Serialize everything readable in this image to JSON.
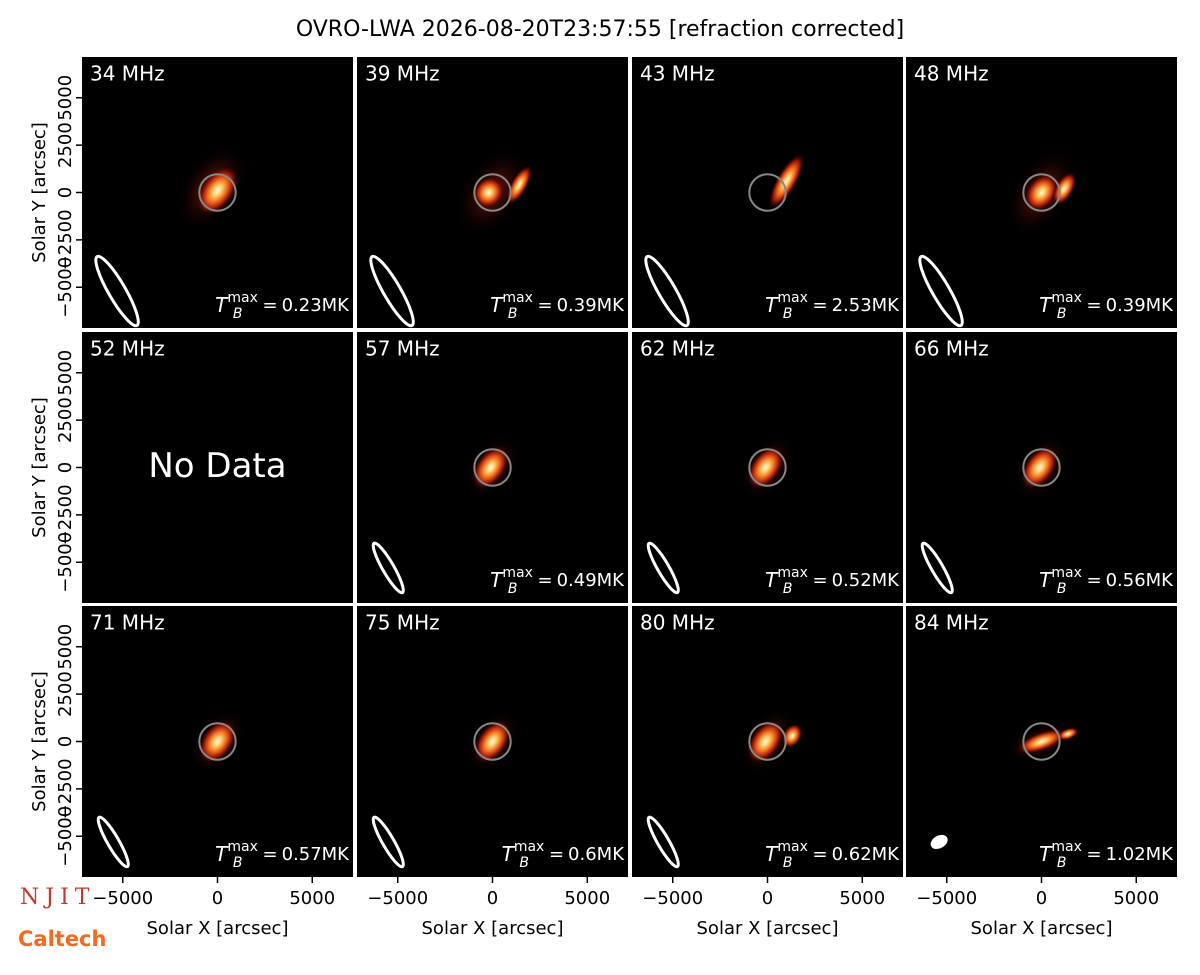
{
  "chart_data": {
    "type": "image-grid",
    "title": "OVRO-LWA 2026-08-20T23:57:55 [refraction corrected]",
    "xlabel": "Solar X [arcsec]",
    "ylabel": "Solar Y [arcsec]",
    "xlim": [
      -7150,
      7150
    ],
    "ylim": [
      -7150,
      7150
    ],
    "xticks": [
      {
        "value": -5000,
        "label": "−5000"
      },
      0,
      5000
    ],
    "yticks": [
      {
        "value": -5000,
        "label": "−5000"
      },
      {
        "value": -2500,
        "label": "−2500"
      },
      0,
      2500,
      5000
    ],
    "solar_radius": 960,
    "tmax_symbol": {
      "base": "T",
      "sub": "B",
      "sup": "max",
      "eq": "="
    },
    "no_data_text": "No Data",
    "panels": [
      {
        "label": "34 MHz",
        "tb_max": 0.23,
        "tb_max_label": "0.23MK"
      },
      {
        "label": "39 MHz",
        "tb_max": 0.39,
        "tb_max_label": "0.39MK"
      },
      {
        "label": "43 MHz",
        "tb_max": 2.53,
        "tb_max_label": "2.53MK"
      },
      {
        "label": "48 MHz",
        "tb_max": 0.39,
        "tb_max_label": "0.39MK"
      },
      {
        "label": "52 MHz",
        "tb_max": null,
        "tb_max_label": null
      },
      {
        "label": "57 MHz",
        "tb_max": 0.49,
        "tb_max_label": "0.49MK"
      },
      {
        "label": "62 MHz",
        "tb_max": 0.52,
        "tb_max_label": "0.52MK"
      },
      {
        "label": "66 MHz",
        "tb_max": 0.56,
        "tb_max_label": "0.56MK"
      },
      {
        "label": "71 MHz",
        "tb_max": 0.57,
        "tb_max_label": "0.57MK"
      },
      {
        "label": "75 MHz",
        "tb_max": 0.6,
        "tb_max_label": "0.6MK"
      },
      {
        "label": "80 MHz",
        "tb_max": 0.62,
        "tb_max_label": "0.62MK"
      },
      {
        "label": "84 MHz",
        "tb_max": 1.02,
        "tb_max_label": "1.02MK"
      }
    ],
    "logos": [
      "NJIT",
      "Caltech"
    ]
  }
}
